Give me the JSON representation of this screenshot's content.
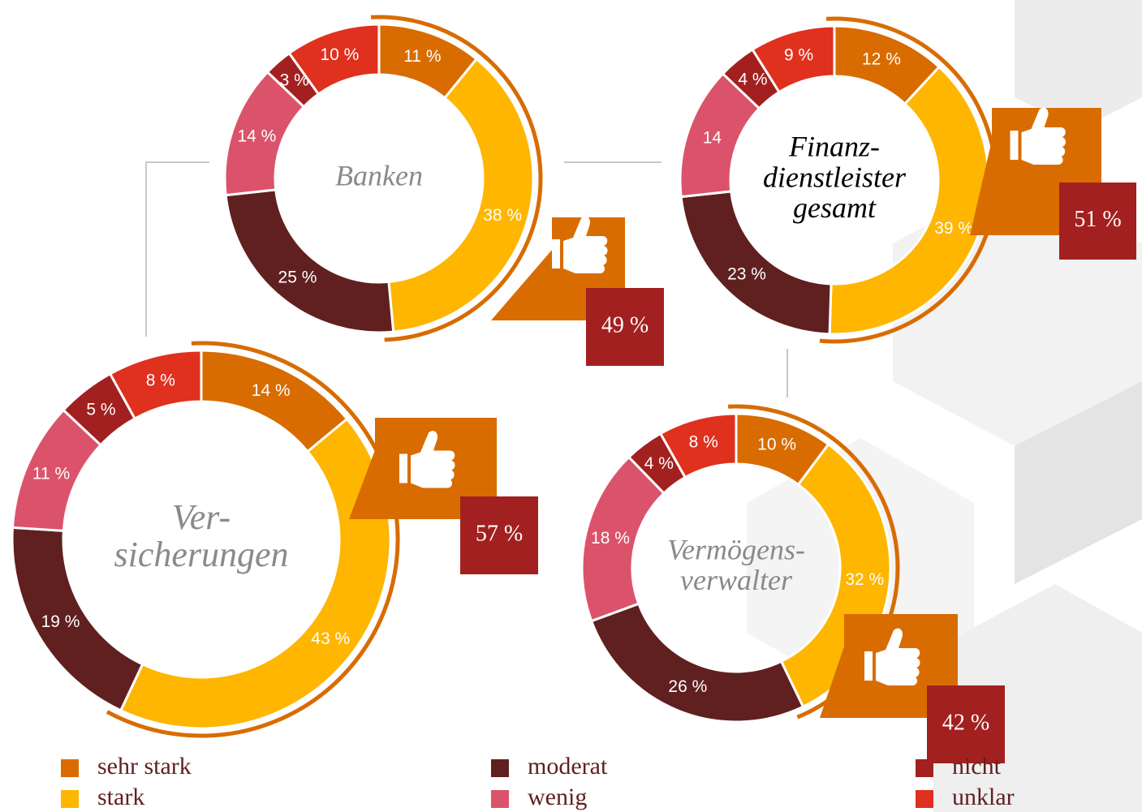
{
  "chart_data": [
    {
      "type": "donut",
      "title_lines": [
        "Banken"
      ],
      "title_color": "#8a8a8a",
      "categories": [
        "sehr stark",
        "stark",
        "moderat",
        "wenig",
        "nicht",
        "unklar"
      ],
      "colors": [
        "#d86c00",
        "#ffb600",
        "#602020",
        "#db536a",
        "#a32020",
        "#e0301e"
      ],
      "values": [
        11,
        38,
        25,
        14,
        3,
        10
      ],
      "value_labels": [
        "11 %",
        "38 %",
        "25 %",
        "14 %",
        "3 %",
        "10 %"
      ],
      "callout_value": 49,
      "callout_label": "49 %"
    },
    {
      "type": "donut",
      "title_lines": [
        "Finanz-",
        "dienstleister",
        "gesamt"
      ],
      "title_color": "#000000",
      "categories": [
        "sehr stark",
        "stark",
        "moderat",
        "wenig",
        "nicht",
        "unklar"
      ],
      "colors": [
        "#d86c00",
        "#ffb600",
        "#602020",
        "#db536a",
        "#a32020",
        "#e0301e"
      ],
      "values": [
        12,
        39,
        23,
        14,
        4,
        9
      ],
      "value_labels": [
        "12 %",
        "39 %",
        "23 %",
        "14",
        "4 %",
        "9 %"
      ],
      "callout_value": 51,
      "callout_label": "51 %"
    },
    {
      "type": "donut",
      "title_lines": [
        "Ver-",
        "sicherungen"
      ],
      "title_color": "#8a8a8a",
      "categories": [
        "sehr stark",
        "stark",
        "moderat",
        "wenig",
        "nicht",
        "unklar"
      ],
      "colors": [
        "#d86c00",
        "#ffb600",
        "#602020",
        "#db536a",
        "#a32020",
        "#e0301e"
      ],
      "values": [
        14,
        43,
        19,
        11,
        5,
        8
      ],
      "value_labels": [
        "14 %",
        "43 %",
        "19 %",
        "11 %",
        "5 %",
        "8 %"
      ],
      "callout_value": 57,
      "callout_label": "57 %"
    },
    {
      "type": "donut",
      "title_lines": [
        "Vermögens-",
        "verwalter"
      ],
      "title_color": "#8a8a8a",
      "categories": [
        "sehr stark",
        "stark",
        "moderat",
        "wenig",
        "nicht",
        "unklar"
      ],
      "colors": [
        "#d86c00",
        "#ffb600",
        "#602020",
        "#db536a",
        "#a32020",
        "#e0301e"
      ],
      "values": [
        10,
        32,
        26,
        18,
        4,
        8
      ],
      "value_labels": [
        "10 %",
        "32 %",
        "26 %",
        "18 %",
        "4 %",
        "8 %"
      ],
      "callout_value": 42,
      "callout_label": "42 %"
    }
  ]
}
